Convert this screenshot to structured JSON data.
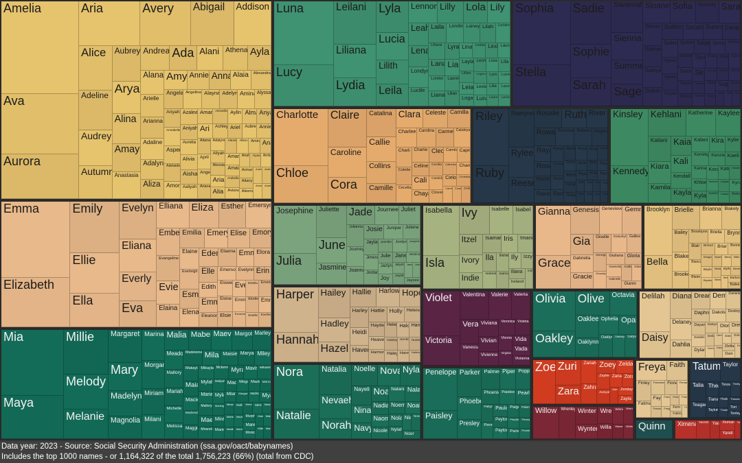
{
  "footer": {
    "line1": "Data year: 2023 - Source: Social Security Administration (ssa.gov/oact/babynames)",
    "line2": "Includes the top 1000 names - or 1,164,322 of the total 1,756,223 (66%) (total from CDC)"
  },
  "chart_data": {
    "type": "treemap",
    "title": "",
    "data_year": 2023,
    "groups": [
      {
        "color": "#e6c36d",
        "names": [
          "Amelia",
          "Ava",
          "Aurora",
          "Aria",
          "Avery",
          "Abigail",
          "Addison",
          "Alice",
          "Adeline",
          "Audrey",
          "Autumn",
          "Aubrey",
          "Arya",
          "Alina",
          "Amaya",
          "Anastasia",
          "Andrea",
          "Ada",
          "Alani",
          "Athena",
          "Ayla",
          "Alana",
          "Arielle",
          "Arianna",
          "Adaline",
          "Adalyn",
          "Aliza",
          "Amy",
          "Annie",
          "Anna",
          "Alaia",
          "Alexandra",
          "Angela",
          "Angelina",
          "Alayna",
          "Adelyn",
          "Amina",
          "Alyssa",
          "Ariyah",
          "Annabelle",
          "Aspen",
          "Adelaide",
          "Amora",
          "Azalea",
          "Aniyah",
          "Aurelia",
          "Alivia",
          "Aisha",
          "Aaliyah",
          "Amara",
          "Antonella",
          "Aylin",
          "Alma",
          "Anya",
          "Ari",
          "Ashley",
          "Ariel",
          "Aubree",
          "Annie",
          "Aitana",
          "April",
          "Angel",
          "Ariana",
          "Adalynn",
          "Aliyah",
          "Alessia",
          "Aria",
          "Alia",
          "Alexis",
          "Allison",
          "Amira",
          "Ana",
          "Amari",
          "Amaia",
          "Arabella",
          "Aviana",
          "Ariah",
          "Aiyana",
          "Amber",
          "Armani",
          "Ailany",
          "Aleena",
          "Aubrielle",
          "Astrid",
          "Avianna",
          "Azariah"
        ]
      },
      {
        "color": "#3f9272",
        "names": [
          "Luna",
          "Lucy",
          "Leilani",
          "Liliana",
          "Lydia",
          "Lyla",
          "Lucia",
          "Lilith",
          "Leila",
          "Lennon",
          "Lilly",
          "Lola",
          "Lily",
          "Leah",
          "Lena",
          "Londyn",
          "Lucille",
          "Laila",
          "London",
          "Lainey",
          "Lilah",
          "Luciana",
          "Lilliana",
          "Lana",
          "Lorelei",
          "Liana",
          "Lyra",
          "Lia",
          "Lauren",
          "Lilian",
          "Lina",
          "Louisa",
          "Lexi",
          "Laura",
          "Layla",
          "Lillian",
          "Leia",
          "Logan",
          "Leona",
          "Livia",
          "Lila",
          "Leighton",
          "Lexie",
          "Luna",
          "Lyric",
          "Lucie",
          "Lilia",
          "Laurel",
          "Lacey",
          "Lorelai"
        ]
      },
      {
        "color": "#2e2b52",
        "names": [
          "Sophia",
          "Stella",
          "Sadie",
          "Sophie",
          "Sarah",
          "Savannah",
          "Sienna",
          "Summer",
          "Sage",
          "Sloane",
          "Sofia",
          "Serenity",
          "Sara",
          "Stevie",
          "Samara",
          "Sawyer",
          "Shiloh",
          "Sutton",
          "Selah",
          "Sunny",
          "Sarai",
          "Salem",
          "Sylvie",
          "Sylvia",
          "Skylar",
          "Sydney",
          "Saige",
          "Sevyn",
          "Sierra",
          "Seriyah",
          "Sasha",
          "Saylor",
          "Serena",
          "Skye",
          "Scottie",
          "Sloan",
          "Selene",
          "Sky",
          "Scarlett",
          "Sabrina",
          "Samantha",
          "Scarlet",
          "Shelby",
          "Skyla",
          "Stephanie",
          "Sage",
          "Saoirse",
          "Simone",
          "Salma",
          "Sariah"
        ]
      },
      {
        "color": "#e5ab6d",
        "names": [
          "Charlotte",
          "Chloe",
          "Claire",
          "Caroline",
          "Cora",
          "Catalina",
          "Callie",
          "Collins",
          "Camille",
          "Clara",
          "Celeste",
          "Camilla",
          "Charlee",
          "Carolina",
          "Carmen",
          "Cataleya",
          "Charli",
          "Colette",
          "Cecelia",
          "Charlie",
          "Celine",
          "Cali",
          "Chaya",
          "Cleo",
          "Camila",
          "Capri",
          "Cecilia",
          "Cassidy",
          "Clover",
          "Catherine",
          "Chana",
          "Cielo",
          "Christina",
          "Cameron",
          "Coraline",
          "Celia"
        ]
      },
      {
        "color": "#26384a",
        "names": [
          "Riley",
          "Ruby",
          "Raelynn",
          "Rylee",
          "Reese",
          "Rosalie",
          "Ruth",
          "River",
          "Rowan",
          "Rosemary",
          "Rebecca",
          "Regina",
          "Raya",
          "Rose",
          "Rachel",
          "Raven",
          "Raegan",
          "Remington",
          "Renata",
          "Remi",
          "Rosie",
          "Royal",
          "Rhea",
          "Rosalia",
          "Romina",
          "Remy",
          "Ryleigh",
          "Reign",
          "Rylie",
          "Reina",
          "Rosa",
          "Ryan",
          "Reagan",
          "Rory",
          "Rivka",
          "Rowen",
          "Rayna",
          "Ryann",
          "Robin",
          "Rubi",
          "Raquel",
          "Ruthie"
        ]
      },
      {
        "color": "#3d8a62",
        "names": [
          "Kinsley",
          "Kennedy",
          "Kehlani",
          "Katherine",
          "Kaylee",
          "Kailani",
          "Kiara",
          "Kamila",
          "Kaia",
          "Kali",
          "Kendall",
          "Kayla",
          "Kalani",
          "Kira",
          "Kylie",
          "Kensley",
          "Kenzie",
          "Kaeli",
          "Karina",
          "Khloe",
          "Kyla",
          "Kora",
          "Kate",
          "Katalina",
          "Kimberly",
          "Kassidy",
          "Kaylani",
          "Kyra",
          "Kataleya",
          "Keira"
        ]
      },
      {
        "color": "#e8b98a",
        "names": [
          "Emma",
          "Elizabeth",
          "Emily",
          "Ellie",
          "Ella",
          "Evelyn",
          "Eliana",
          "Everly",
          "Eva",
          "Elliana",
          "Eliza",
          "Esther",
          "Emersyn",
          "Ember",
          "Evangeline",
          "Evie",
          "Elaina",
          "Emilia",
          "Emery",
          "Elise",
          "Emory",
          "Elaine",
          "Everleigh",
          "Esme",
          "Elena",
          "Eden",
          "Elianna",
          "Emmy",
          "Elora",
          "Elle",
          "Edith",
          "Emmy",
          "Eleanor",
          "Emerson",
          "Evelynn",
          "Erin",
          "Elowen",
          "Eloise",
          "Elsie",
          "Eve",
          "Estella",
          "Emerie",
          "Emmie",
          "Esmeralda",
          "Elodie",
          "Emma",
          "Estelle",
          "Everlee"
        ]
      },
      {
        "color": "#7ba47d",
        "names": [
          "Josephine",
          "Julia",
          "Juliette",
          "June",
          "Jasmine",
          "Jade",
          "Journee",
          "Juliet",
          "Julianna",
          "Journey",
          "Joanna",
          "Josie",
          "Juniper",
          "Juliana",
          "Jayla",
          "Jimena",
          "Jordan",
          "Jennifer",
          "Jordyn",
          "Josephine",
          "Julie",
          "Jazlyn",
          "Joy",
          "Jane",
          "Jessica",
          "Jaliyah",
          "Jaylah",
          "Janelle",
          "Jolene",
          "Jaycee"
        ]
      },
      {
        "color": "#a7b281",
        "names": [
          "Isabella",
          "Isla",
          "Ivy",
          "Isabelle",
          "Isabel",
          "Itzel",
          "Ivory",
          "Indie",
          "Isamar",
          "Iris",
          "Imani",
          "Ila",
          "Isabela",
          "Irene",
          "Ivanna",
          "Ily",
          "Izzy",
          "Iliana",
          "Ireland",
          "Indy"
        ]
      },
      {
        "color": "#e8b78a",
        "names": [
          "Gianna",
          "Grace",
          "Genesis",
          "Genevieve",
          "Gemma",
          "Gia",
          "Gabriella",
          "Gracie",
          "Giselle",
          "Gracelyn",
          "Galilea",
          "Georgia",
          "Gracelynn",
          "Giuliana",
          "Gloria",
          "Gwendolyn",
          "Gabrielle",
          "Goldie",
          "Giana",
          "Gianni"
        ]
      },
      {
        "color": "#e6c380",
        "names": [
          "Brooklyn",
          "Bella",
          "Brielle",
          "Brianna",
          "Blakely",
          "Bailey",
          "Blake",
          "Brooke",
          "Brooklynn",
          "Briella",
          "Brynn",
          "Blair",
          "Bianca",
          "Blaire",
          "Bristol",
          "Briar",
          "Bonnie",
          "Bridget",
          "Baylor",
          "Brynlee",
          "Braelynn",
          "Blessing",
          "Billie",
          "Bellamy",
          "Berkley",
          "Blythe",
          "Bexley",
          "Bethany",
          "Barbara",
          "Bailee"
        ]
      },
      {
        "color": "#cfb38c",
        "names": [
          "Harper",
          "Hannah",
          "Hailey",
          "Hadley",
          "Hazel",
          "Hallie",
          "Harlow",
          "Hope",
          "Harley",
          "Heidi",
          "Haven",
          "Hattie",
          "Holly",
          "Helena",
          "Hayden",
          "Heaven",
          "Harmony",
          "Helen",
          "Halo",
          "Hana",
          "Haisley",
          "Haley",
          "Henley",
          "Hunter",
          "Hanna",
          "Hallelujah"
        ]
      },
      {
        "color": "#5a2545",
        "light": true,
        "names": [
          "Violet",
          "Victoria",
          "Valentina",
          "Valerie",
          "Valeria",
          "Vera",
          "Vanessa",
          "Viviana",
          "Vivian",
          "Vivienne",
          "Veronica",
          "Violeta",
          "Vienna",
          "Virginia",
          "Vida",
          "Vada",
          "Vivianna"
        ]
      },
      {
        "color": "#1b6e5a",
        "light": true,
        "names": [
          "Olivia",
          "Oakley",
          "Olive",
          "Octavia",
          "Oaklee",
          "Oaklynn",
          "Ophelia",
          "Opal",
          "Oaklyn",
          "Oakleigh",
          "Oaklynn"
        ]
      },
      {
        "color": "#e3c693",
        "names": [
          "Delilah",
          "Daisy",
          "Diana",
          "Delaney",
          "Dahlia",
          "Dream",
          "Demi",
          "Daniela",
          "Daphne",
          "Dakota",
          "Destiny",
          "Dayana",
          "Danielle",
          "Dylan",
          "Daleyza",
          "Dior",
          "Drew",
          "Dalia",
          "Dorothy",
          "Denver",
          "Daniella",
          "Danna",
          "Dulce",
          "Della",
          "Dani",
          "Dallas"
        ]
      },
      {
        "color": "#126c58",
        "light": true,
        "names": [
          "Mia",
          "Maya",
          "Millie",
          "Melody",
          "Melanie",
          "Margaret",
          "Mary",
          "Madelyn",
          "Magnolia",
          "Marina",
          "Morgan",
          "Miriam",
          "Milani",
          "Malia",
          "Mabel",
          "Maeve",
          "Margot",
          "Marley",
          "Meadow",
          "Mallory",
          "Mariah",
          "Michelle",
          "Melissa",
          "Madeleine",
          "Mila",
          "Maisie",
          "Maryam",
          "Miley",
          "Makayla",
          "Maia",
          "Macie",
          "Mackenzie",
          "Maggie",
          "Mikayla",
          "Mckenna",
          "Myra",
          "Mavis",
          "Mikaela",
          "Mylah",
          "Maria",
          "Mallory",
          "Mae",
          "Miranda",
          "Maliyah",
          "Macy",
          "Megan",
          "Mazie",
          "Monroe",
          "Myla",
          "Marleigh",
          "Mira",
          "Marie",
          "Milan",
          "Maryjane",
          "Madison",
          "Mya",
          "Miracle",
          "Marissa",
          "Madilyn",
          "Molly",
          "Madeline",
          "Marlee",
          "Meredith",
          "Mercy",
          "Maddison",
          "Murphy",
          "Maren",
          "Monica",
          "Madelynn",
          "Malaya",
          "Miller",
          "Mariam"
        ]
      },
      {
        "color": "#1b6e58",
        "light": true,
        "names": [
          "Nora",
          "Natalie",
          "Natalia",
          "Nevaeh",
          "Norah",
          "Noelle",
          "Nova",
          "Nyla",
          "Nayeli",
          "Nina",
          "Navy",
          "Noa",
          "Nalani",
          "Nala",
          "Nadia",
          "Naomi",
          "Nicole",
          "Noemi",
          "Noah",
          "Nola",
          "Nylah",
          "Nia",
          "Novah",
          "Noor"
        ]
      },
      {
        "color": "#1a6d58",
        "light": true,
        "names": [
          "Penelope",
          "Paisley",
          "Parker",
          "Phoebe",
          "Presley",
          "Palmer",
          "Piper",
          "Poppy",
          "Phoenix",
          "Paislee",
          "Pearl",
          "Paityn",
          "Penny",
          "Paula",
          "Peyton",
          "Payton",
          "Paige",
          "Paloma",
          "Priscilla",
          "Paris",
          "Persephone",
          "Promise"
        ]
      },
      {
        "color": "#d13b20",
        "light": true,
        "names": [
          "Zoe",
          "Zuri",
          "Zara",
          "Zariah",
          "Zahra",
          "Zoey",
          "Zelda",
          "Zaylee",
          "Zaniyah",
          "Zaria",
          "Zora",
          "Zainab",
          "Zendaya",
          "Zayla"
        ]
      },
      {
        "color": "#7b2735",
        "light": true,
        "names": [
          "Willow",
          "Wrenley",
          "Winter",
          "Wynter",
          "Wren",
          "Willa",
          "Winnie",
          "Wrenlee",
          "Waverly",
          "Whitney"
        ]
      },
      {
        "color": "#e3c693",
        "names": [
          "Freya",
          "Faith",
          "Finley",
          "Fatima",
          "Francesca",
          "Fiona",
          "Fernanda",
          "Faye",
          "Frances",
          "Frankie",
          "Freyja",
          "Felicity",
          "Fallon",
          "Fern",
          "Fatima",
          "Florence"
        ]
      },
      {
        "color": "#26384a",
        "light": true,
        "names": [
          "Tatum",
          "Taylor",
          "Talia",
          "Teagan",
          "Thea",
          "Tessa",
          "Trinity",
          "Tiana",
          "Taytum",
          "Thalia",
          "Tinsley",
          "Theodora",
          "Tori",
          "Tenley"
        ]
      },
      {
        "color": "#1f4e4e",
        "light": true,
        "names": [
          "Quinn"
        ]
      },
      {
        "color": "#b8302a",
        "light": true,
        "names": [
          "Ximena",
          "Yaretzi",
          "Yara",
          "Xiomara",
          "Yareli",
          "Yasmin"
        ]
      }
    ]
  }
}
